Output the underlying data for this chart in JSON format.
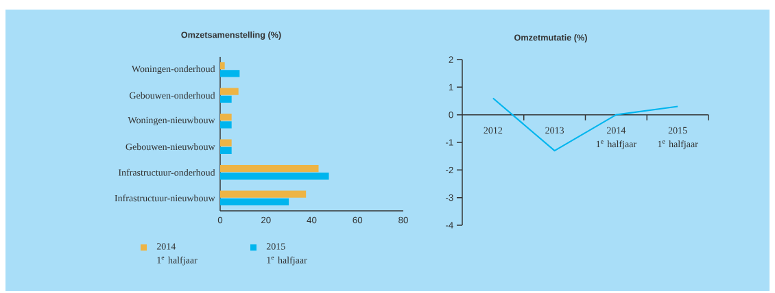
{
  "chart_data": [
    {
      "type": "bar",
      "title": "Omzetsamenstelling (%)",
      "orientation": "horizontal",
      "categories": [
        "Woningen-onderhoud",
        "Gebouwen-onderhoud",
        "Woningen-nieuwbouw",
        "Gebouwen-nieuwbouw",
        "Infrastructuur-onderhoud",
        "Infrastructuur-nieuwbouw"
      ],
      "series": [
        {
          "name": "2014\n1$^{e}$ halfjaar",
          "color": "#edb445",
          "values": [
            2,
            8,
            5,
            5,
            43,
            37.5
          ]
        },
        {
          "name": "2015\n1$^{e}$ halfjaar",
          "color": "#00b5ee",
          "values": [
            8.5,
            5,
            5,
            5,
            47.5,
            30
          ]
        }
      ],
      "xlim": [
        0,
        80
      ],
      "xticks": [
        0,
        20,
        40,
        60,
        80
      ],
      "legend": "bottom"
    },
    {
      "type": "line",
      "title": "Omzetmutatie (%)",
      "categories": [
        "2012",
        "2013",
        "2014\n1$^{e}$ halfjaar",
        "2015\n1$^{e}$ halfjaar"
      ],
      "series": [
        {
          "color": "#00b5ee",
          "values": [
            0.6,
            -1.3,
            0,
            0.3
          ]
        }
      ],
      "ylim": [
        -4,
        2
      ],
      "yticks": [
        -4,
        -3,
        -2,
        -1,
        0,
        1,
        2
      ],
      "marker": "none"
    }
  ]
}
